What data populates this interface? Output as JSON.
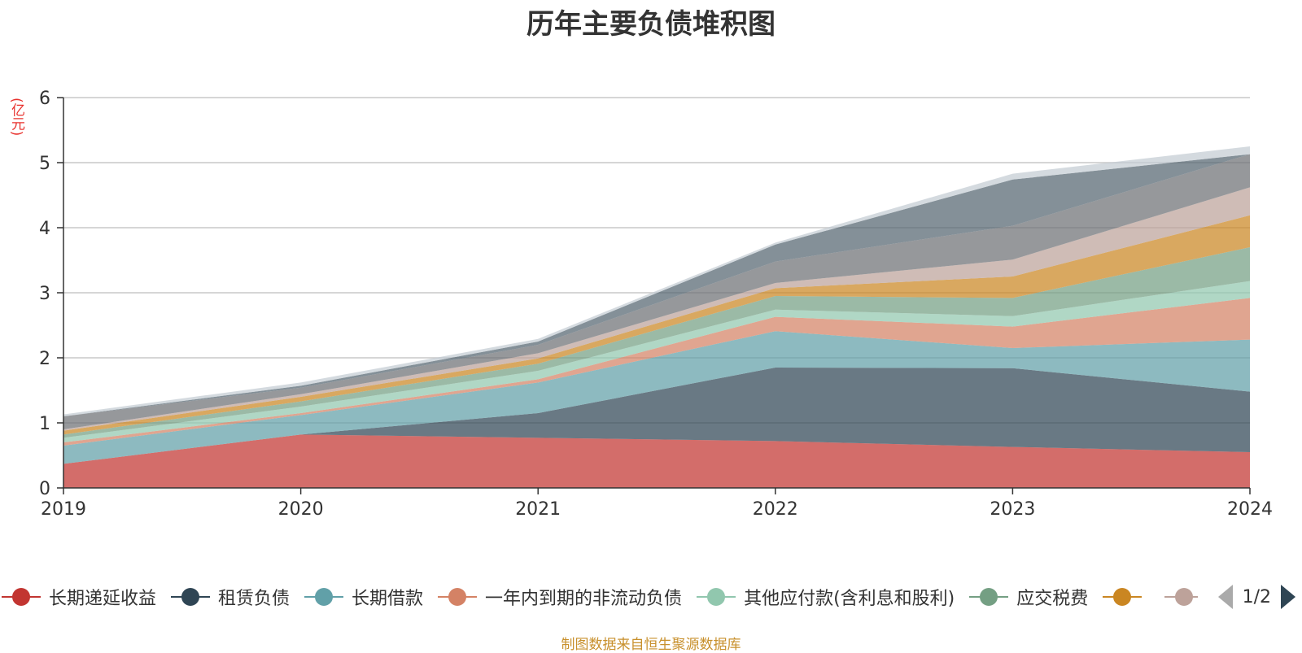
{
  "title": "历年主要负债堆积图",
  "unit_label": "(亿元)",
  "source_note": "制图数据来自恒生聚源数据库",
  "pager": {
    "text": "1/2"
  },
  "chart_data": {
    "type": "area",
    "stacked": true,
    "title": "历年主要负债堆积图",
    "ylabel": "(亿元)",
    "x": [
      "2019",
      "2020",
      "2021",
      "2022",
      "2023",
      "2024"
    ],
    "ylim": [
      0,
      6
    ],
    "yticks": [
      0,
      1,
      2,
      3,
      4,
      5,
      6
    ],
    "grid": true,
    "legend_position": "bottom",
    "series": [
      {
        "name": "长期递延收益",
        "color": "#c23531",
        "values": [
          0.37,
          0.82,
          0.77,
          0.72,
          0.63,
          0.55
        ]
      },
      {
        "name": "租赁负债",
        "color": "#2f4554",
        "values": [
          0.0,
          0.0,
          0.38,
          1.13,
          1.21,
          0.93
        ]
      },
      {
        "name": "长期借款",
        "color": "#61a0a8",
        "values": [
          0.28,
          0.3,
          0.47,
          0.56,
          0.31,
          0.8
        ]
      },
      {
        "name": "一年内到期的非流动负债",
        "color": "#d48265",
        "values": [
          0.05,
          0.03,
          0.05,
          0.22,
          0.33,
          0.64
        ]
      },
      {
        "name": "其他应付款(含利息和股利)",
        "color": "#91c7ae",
        "values": [
          0.07,
          0.1,
          0.13,
          0.11,
          0.16,
          0.26
        ]
      },
      {
        "name": "应交税费",
        "color": "#749f83",
        "values": [
          0.05,
          0.08,
          0.11,
          0.21,
          0.28,
          0.52
        ]
      },
      {
        "name": "",
        "color": "#ca8622",
        "values": [
          0.06,
          0.07,
          0.08,
          0.12,
          0.33,
          0.49
        ]
      },
      {
        "name": "",
        "color": "#bda29a",
        "values": [
          0.02,
          0.04,
          0.08,
          0.08,
          0.26,
          0.43
        ]
      },
      {
        "name": "",
        "color": "#6e7074",
        "values": [
          0.2,
          0.1,
          0.13,
          0.33,
          0.52,
          0.51
        ]
      },
      {
        "name": "",
        "color": "#546570",
        "values": [
          0.0,
          0.03,
          0.05,
          0.26,
          0.71,
          0.0
        ]
      },
      {
        "name": "",
        "color": "#c4ccd3",
        "values": [
          0.03,
          0.05,
          0.04,
          0.03,
          0.09,
          0.12
        ]
      }
    ]
  }
}
